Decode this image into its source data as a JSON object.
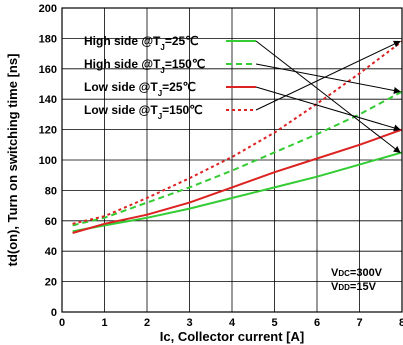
{
  "chart_data": {
    "type": "line",
    "xlabel": "Ic, Collector current [A]",
    "ylabel": "td(on), Turn on switching time [ns]",
    "xlim": [
      0,
      8
    ],
    "ylim": [
      0,
      200
    ],
    "xticks": [
      "0",
      "1",
      "2",
      "3",
      "4",
      "5",
      "6",
      "7",
      "8"
    ],
    "yticks": [
      "0",
      "20",
      "40",
      "60",
      "80",
      "100",
      "120",
      "140",
      "160",
      "180",
      "200"
    ],
    "grid": true,
    "legend_position": "top-left",
    "series": [
      {
        "name": "High side @TJ=25℃",
        "legend": {
          "main": "High side @T",
          "sub": "J",
          "post": "=25℃"
        },
        "color": "#33cc33",
        "style": "solid",
        "x": [
          0.25,
          1,
          2,
          3,
          4,
          5,
          6,
          7,
          8
        ],
        "y": [
          53,
          57,
          62,
          68,
          75,
          82,
          89,
          97,
          105
        ]
      },
      {
        "name": "High side @TJ=150℃",
        "legend": {
          "main": "High side @T",
          "sub": "J",
          "post": "=150℃"
        },
        "color": "#33cc33",
        "style": "dashed",
        "x": [
          0.25,
          1,
          2,
          3,
          4,
          5,
          6,
          7,
          8
        ],
        "y": [
          57,
          62,
          72,
          82,
          93,
          105,
          117,
          130,
          145
        ]
      },
      {
        "name": "Low side @TJ=25℃",
        "legend": {
          "main": "Low side @T",
          "sub": "J",
          "post": "=25℃"
        },
        "color": "#dd2222",
        "style": "solid",
        "x": [
          0.25,
          1,
          2,
          3,
          4,
          5,
          6,
          7,
          8
        ],
        "y": [
          52,
          58,
          64,
          72,
          82,
          92,
          101,
          110,
          120
        ]
      },
      {
        "name": "Low side @TJ=150℃",
        "legend": {
          "main": "Low side @T",
          "sub": "J",
          "post": "=150℃"
        },
        "color": "#dd2222",
        "style": "dotted",
        "x": [
          0.25,
          1,
          2,
          3,
          4,
          5,
          6,
          7,
          8
        ],
        "y": [
          58,
          63,
          75,
          88,
          102,
          118,
          137,
          157,
          178
        ]
      }
    ],
    "annotations": [
      {
        "text_main": "V",
        "text_sub": "DC",
        "text_post": "=300V"
      },
      {
        "text_main": "V",
        "text_sub": "DD",
        "text_post": "=15V"
      }
    ]
  }
}
